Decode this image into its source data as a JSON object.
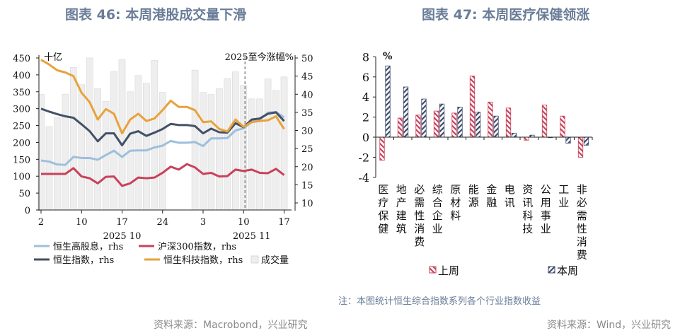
{
  "left": {
    "title": "图表 46: 本周港股成交量下滑",
    "source": "资料来源：Macrobond，兴业研究"
  },
  "right": {
    "title": "图表 47: 本周医疗保健领涨",
    "note": "注：本图统计恒生综合指数系列各个行业指数收益",
    "source": "资料来源：Wind，兴业研究"
  },
  "colors": {
    "hsi_hd": "#9dbfdc",
    "csi300": "#c9415a",
    "hsi": "#435066",
    "hstech": "#e8a23a",
    "volume": "#eeeeee",
    "last_week": "#c9415a",
    "this_week": "#3f4d6b"
  },
  "chart_data": [
    {
      "type": "bar+line",
      "left_unit": "十亿",
      "right_unit": "2025至今涨幅%",
      "ylim_left": [
        0,
        450
      ],
      "yticks_left": [
        0,
        50,
        100,
        150,
        200,
        250,
        300,
        350,
        400,
        450
      ],
      "ylim_right": [
        10,
        50
      ],
      "yticks_right": [
        10,
        15,
        20,
        25,
        30,
        35,
        40,
        45,
        50
      ],
      "x": [
        "2025-10-02",
        "2025-10-03",
        "2025-10-06",
        "2025-10-08",
        "2025-10-09",
        "2025-10-10",
        "2025-10-13",
        "2025-10-14",
        "2025-10-15",
        "2025-10-16",
        "2025-10-17",
        "2025-10-20",
        "2025-10-21",
        "2025-10-22",
        "2025-10-23",
        "2025-10-24",
        "2025-10-27",
        "2025-10-28",
        "2025-10-30",
        "2025-10-31",
        "2025-11-03",
        "2025-11-04",
        "2025-11-05",
        "2025-11-06",
        "2025-11-07",
        "2025-11-10",
        "2025-11-11",
        "2025-11-12",
        "2025-11-13",
        "2025-11-14",
        "2025-11-17"
      ],
      "xtick_labels": [
        {
          "index": 0,
          "label": "2"
        },
        {
          "index": 5,
          "label": "10"
        },
        {
          "index": 10,
          "label": "17"
        },
        {
          "index": 15,
          "label": "24"
        },
        {
          "index": 20,
          "label": "3"
        },
        {
          "index": 25,
          "label": "10"
        },
        {
          "index": 30,
          "label": "17"
        }
      ],
      "month_labels": [
        {
          "index": 10,
          "label": "2025 10"
        },
        {
          "index": 26,
          "label": "2025 11"
        }
      ],
      "marker_line_index": 25,
      "series": [
        {
          "name": "恒生高股息，rhs",
          "key": "hsi_hd",
          "axis": "right",
          "type": "line",
          "values": [
            21.7,
            21.4,
            20.6,
            20.5,
            22.7,
            22.4,
            22.4,
            21.9,
            23.2,
            24.4,
            22.7,
            24.4,
            24.5,
            24.5,
            25.3,
            25.8,
            27.1,
            26.6,
            26.6,
            26.8,
            25.7,
            27.8,
            27.8,
            27.9,
            30.0,
            30.6,
            32.3,
            33.0,
            34.9,
            35.1,
            33.6
          ]
        },
        {
          "name": "沪深300指数，rhs",
          "key": "csi300",
          "axis": "right",
          "type": "line",
          "values": [
            18.0,
            18.0,
            18.0,
            18.0,
            19.6,
            17.3,
            16.8,
            15.4,
            17.2,
            17.3,
            14.7,
            15.4,
            17.0,
            16.8,
            17.0,
            18.3,
            20.0,
            19.2,
            20.7,
            19.8,
            18.0,
            18.3,
            17.3,
            17.4,
            19.2,
            18.8,
            19.2,
            18.3,
            18.2,
            19.4,
            17.7
          ]
        },
        {
          "name": "恒生指数，rhs",
          "key": "hsi",
          "axis": "right",
          "type": "line",
          "values": [
            36.0,
            35.2,
            34.5,
            33.9,
            33.5,
            31.7,
            29.8,
            27.0,
            29.2,
            29.2,
            25.9,
            29.1,
            29.8,
            28.5,
            29.4,
            30.4,
            31.8,
            31.5,
            31.5,
            31.2,
            29.2,
            30.5,
            29.5,
            29.4,
            32.0,
            30.9,
            33.0,
            33.3,
            34.6,
            35.0,
            32.6
          ]
        },
        {
          "name": "恒生科技指数，rhs",
          "key": "hstech",
          "axis": "right",
          "type": "line",
          "values": [
            49.5,
            48.2,
            46.6,
            46.0,
            45.0,
            40.4,
            37.8,
            33.0,
            35.9,
            34.6,
            29.2,
            33.0,
            34.6,
            32.6,
            33.3,
            35.6,
            38.2,
            36.5,
            36.5,
            35.6,
            32.3,
            32.5,
            30.4,
            29.7,
            33.0,
            31.0,
            32.3,
            32.6,
            32.8,
            33.9,
            30.4
          ]
        },
        {
          "name": "成交量",
          "key": "volume",
          "axis": "left",
          "type": "bar",
          "values": [
            342,
            247,
            273,
            343,
            422,
            371,
            450,
            359,
            322,
            410,
            445,
            350,
            398,
            375,
            443,
            348,
            0,
            0,
            0,
            414,
            348,
            342,
            359,
            389,
            409,
            369,
            329,
            329,
            388,
            354,
            394
          ]
        }
      ]
    },
    {
      "type": "bar",
      "unit": "%",
      "ylim": [
        -4,
        8
      ],
      "yticks": [
        -4,
        -2,
        0,
        2,
        4,
        6,
        8
      ],
      "categories": [
        "医疗保健",
        "地产建筑",
        "必需性消费",
        "综合企业",
        "原材料",
        "能源",
        "金融",
        "电讯",
        "资讯科技",
        "公用事业",
        "工业",
        "非必需性消费"
      ],
      "series": [
        {
          "name": "上周",
          "key": "last_week",
          "values": [
            -2.3,
            1.9,
            2.2,
            2.6,
            2.4,
            6.1,
            3.5,
            2.9,
            -0.3,
            3.2,
            2.1,
            -2.0
          ]
        },
        {
          "name": "本周",
          "key": "this_week",
          "values": [
            7.1,
            5.0,
            3.8,
            3.3,
            3.0,
            2.5,
            2.1,
            0.4,
            0.2,
            -0.05,
            -0.6,
            -0.8
          ]
        }
      ]
    }
  ]
}
